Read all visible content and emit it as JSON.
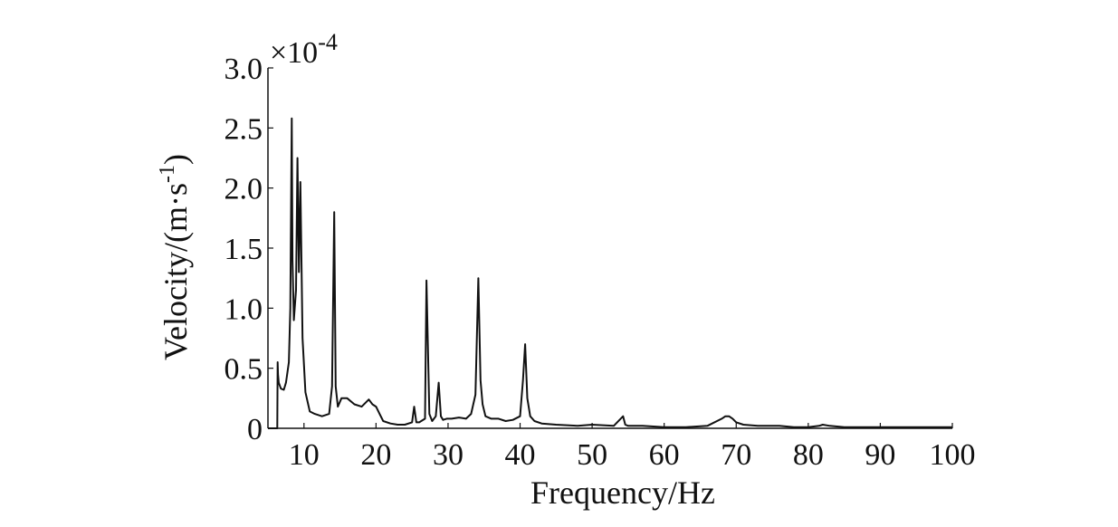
{
  "chart_data": {
    "type": "line",
    "title": "",
    "xlabel": "Frequency/Hz",
    "ylabel_main": "Velocity/(m·s",
    "ylabel_sup": "-1",
    "ylabel_close": ")",
    "y_scale_prefix": "×10",
    "y_scale_exponent": "-4",
    "xlim": [
      5,
      100
    ],
    "ylim": [
      0,
      3.0
    ],
    "x_ticks": [
      10,
      20,
      30,
      40,
      50,
      60,
      70,
      80,
      90,
      100
    ],
    "x_tick_labels": [
      "10",
      "20",
      "30",
      "40",
      "50",
      "60",
      "70",
      "80",
      "90",
      "100"
    ],
    "y_ticks": [
      0,
      0.5,
      1.0,
      1.5,
      2.0,
      2.5,
      3.0
    ],
    "y_tick_labels": [
      "0",
      "0.5",
      "1.0",
      "1.5",
      "2.0",
      "2.5",
      "3.0"
    ],
    "grid": false,
    "line_color": "#111111",
    "series": [
      {
        "x": [
          5,
          6.3,
          6.35,
          6.4,
          6.5,
          6.8,
          7.2,
          7.5,
          7.9,
          8.1,
          8.3,
          8.4,
          8.6,
          8.9,
          9.1,
          9.3,
          9.5,
          9.8,
          10.2,
          10.8,
          11.5,
          12.5,
          13.5,
          13.9,
          14.2,
          14.4,
          14.7,
          15.2,
          16,
          17,
          18,
          19,
          19.5,
          20,
          20.5,
          21,
          22,
          23,
          24,
          25,
          25.3,
          25.6,
          26,
          26.8,
          27,
          27.4,
          27.8,
          28.3,
          28.7,
          29,
          29.3,
          29.8,
          30.5,
          31.5,
          32.5,
          33.2,
          33.8,
          34.2,
          34.5,
          34.8,
          35.2,
          36,
          37,
          38,
          39,
          40,
          40.4,
          40.7,
          41,
          41.4,
          42,
          43,
          45,
          48,
          50,
          53,
          54.3,
          54.6,
          55,
          57,
          60,
          63,
          66,
          68,
          68.5,
          69,
          69.5,
          70,
          71,
          73,
          76,
          78,
          80,
          81.5,
          82,
          83,
          85,
          90,
          95,
          100
        ],
        "y": [
          0,
          0,
          0.55,
          0.45,
          0.38,
          0.33,
          0.32,
          0.38,
          0.55,
          1.0,
          2.58,
          1.4,
          0.9,
          1.15,
          2.25,
          1.3,
          2.05,
          0.75,
          0.3,
          0.14,
          0.12,
          0.1,
          0.12,
          0.35,
          1.8,
          0.35,
          0.18,
          0.25,
          0.25,
          0.2,
          0.18,
          0.24,
          0.2,
          0.18,
          0.12,
          0.06,
          0.04,
          0.03,
          0.03,
          0.05,
          0.18,
          0.05,
          0.05,
          0.08,
          1.23,
          0.12,
          0.06,
          0.1,
          0.38,
          0.1,
          0.07,
          0.08,
          0.08,
          0.09,
          0.08,
          0.12,
          0.28,
          1.25,
          0.4,
          0.2,
          0.1,
          0.08,
          0.08,
          0.06,
          0.07,
          0.1,
          0.4,
          0.7,
          0.25,
          0.1,
          0.06,
          0.04,
          0.03,
          0.02,
          0.03,
          0.02,
          0.1,
          0.03,
          0.02,
          0.02,
          0.01,
          0.01,
          0.02,
          0.08,
          0.1,
          0.1,
          0.08,
          0.05,
          0.03,
          0.02,
          0.02,
          0.01,
          0.01,
          0.02,
          0.03,
          0.02,
          0.01,
          0.01,
          0.01,
          0.01
        ]
      }
    ]
  }
}
